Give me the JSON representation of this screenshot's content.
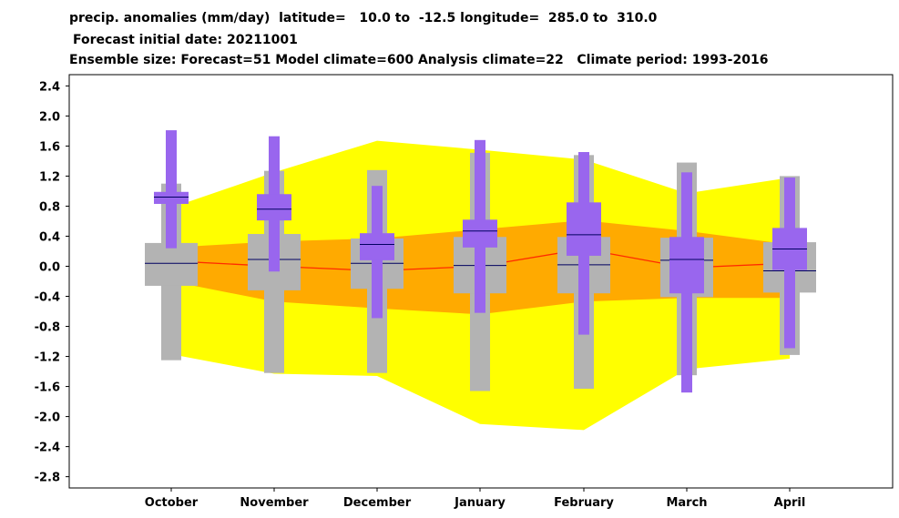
{
  "titles": {
    "line1": "precip. anomalies (mm/day)  latitude=   10.0 to  -12.5 longitude=  285.0 to  310.0",
    "line2": "Forecast initial date: 20211001",
    "line3": "Ensemble size: Forecast=51 Model climate=600 Analysis climate=22   Climate period: 1993-2016"
  },
  "chart_data": {
    "type": "box",
    "categories": [
      "October",
      "November",
      "December",
      "January",
      "February",
      "March",
      "April"
    ],
    "yticks": [
      "2.4",
      "2.0",
      "1.6",
      "1.2",
      "0.8",
      "0.4",
      "0.0",
      "-0.4",
      "-0.8",
      "-1.2",
      "-1.6",
      "-2.0",
      "-2.4",
      "-2.8"
    ],
    "ylim": [
      -2.95,
      2.55
    ],
    "analysis_climate_band": {
      "outer_low": [
        -1.17,
        -1.43,
        -1.46,
        -2.1,
        -2.18,
        -1.37,
        -1.23
      ],
      "outer_high": [
        0.78,
        1.25,
        1.67,
        1.55,
        1.42,
        0.97,
        1.18
      ],
      "inner_low": [
        -0.2,
        -0.47,
        -0.56,
        -0.64,
        -0.47,
        -0.42,
        -0.42
      ],
      "inner_high": [
        0.25,
        0.33,
        0.37,
        0.49,
        0.61,
        0.47,
        0.29
      ],
      "median": [
        0.07,
        0.0,
        -0.06,
        0.0,
        0.23,
        -0.02,
        0.04
      ]
    },
    "model_climate": {
      "min": [
        -1.25,
        -1.42,
        -1.42,
        -1.66,
        -1.63,
        -1.45,
        -1.18
      ],
      "q1": [
        -0.26,
        -0.32,
        -0.3,
        -0.36,
        -0.36,
        -0.41,
        -0.35
      ],
      "median": [
        0.04,
        0.09,
        0.04,
        0.01,
        0.02,
        0.08,
        -0.06
      ],
      "q3": [
        0.31,
        0.43,
        0.37,
        0.39,
        0.39,
        0.38,
        0.32
      ],
      "max": [
        1.1,
        1.27,
        1.28,
        1.51,
        1.48,
        1.38,
        1.2
      ]
    },
    "forecast": {
      "min": [
        0.24,
        -0.07,
        -0.69,
        -0.62,
        -0.91,
        -1.68,
        -1.09
      ],
      "q1": [
        0.83,
        0.61,
        0.08,
        0.25,
        0.14,
        -0.36,
        -0.05
      ],
      "median": [
        0.92,
        0.76,
        0.29,
        0.47,
        0.42,
        0.09,
        0.23
      ],
      "q3": [
        0.99,
        0.96,
        0.44,
        0.62,
        0.85,
        0.39,
        0.51
      ],
      "max": [
        1.81,
        1.73,
        1.07,
        1.68,
        1.52,
        1.25,
        1.18
      ]
    },
    "colors": {
      "outer_band": "#ffff00",
      "inner_band": "#ffaa00",
      "median_line": "#ff2a00",
      "model_climate": "#b3b3b3",
      "forecast": "#9966ee",
      "median_tick": "#000060"
    }
  }
}
